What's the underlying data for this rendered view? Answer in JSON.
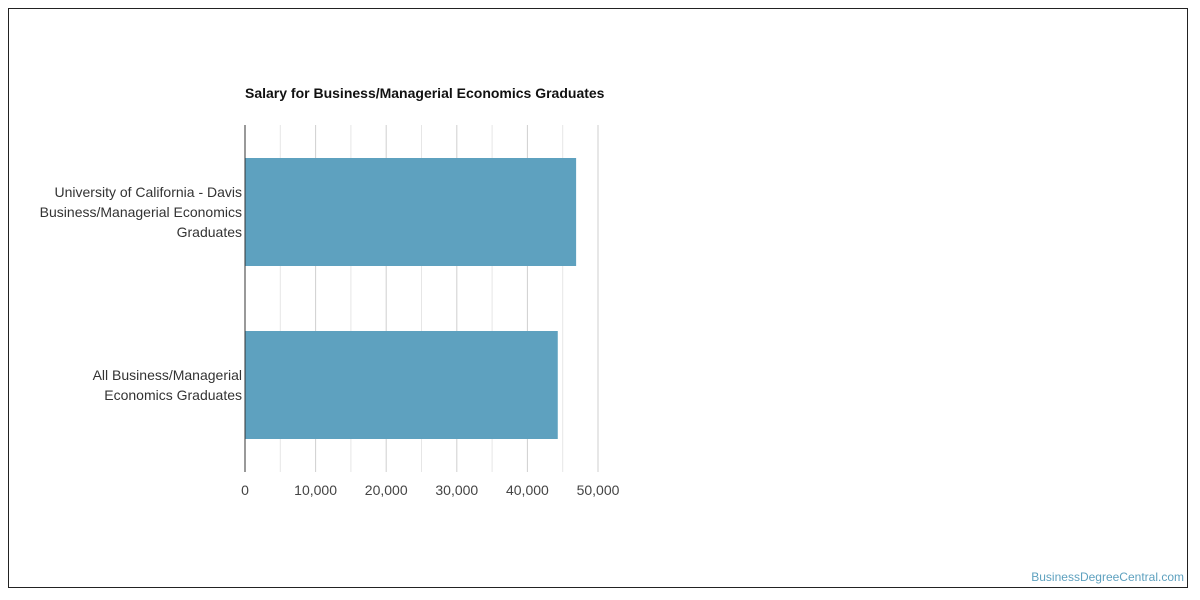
{
  "chart_data": {
    "type": "bar",
    "orientation": "horizontal",
    "title": "Salary for Business/Managerial Economics Graduates",
    "categories": [
      [
        "University of California - Davis",
        "Business/Managerial Economics",
        "Graduates"
      ],
      [
        "All Business/Managerial",
        "Economics Graduates"
      ]
    ],
    "values": [
      46900,
      44300
    ],
    "xlim": [
      0,
      50000
    ],
    "x_ticks": [
      0,
      10000,
      20000,
      30000,
      40000,
      50000
    ],
    "x_tick_labels": [
      "0",
      "10,000",
      "20,000",
      "30,000",
      "40,000",
      "50,000"
    ],
    "grid": true,
    "bar_color": "#5ea1bf",
    "xlabel": "",
    "ylabel": ""
  },
  "watermark": "BusinessDegreeCentral.com"
}
